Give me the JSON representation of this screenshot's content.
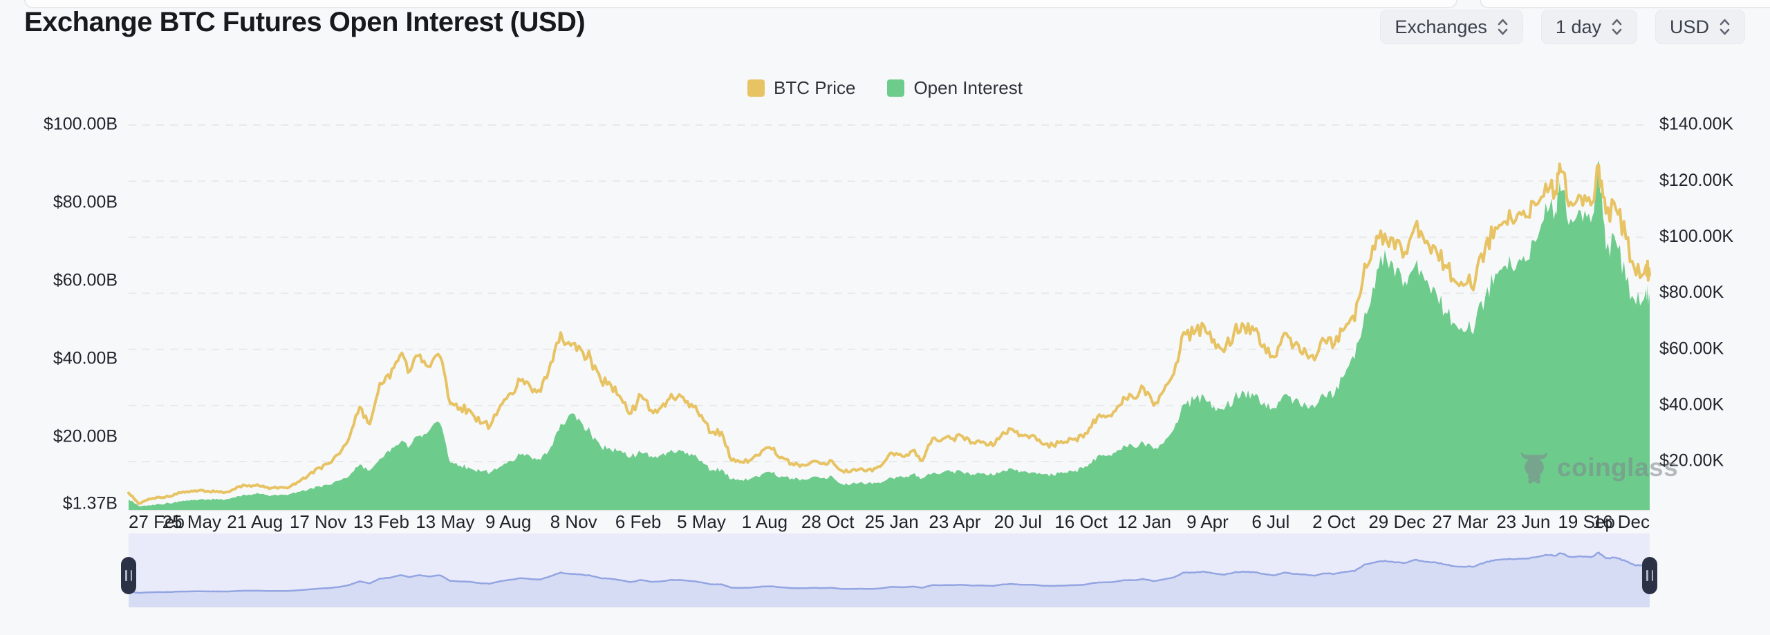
{
  "page": {
    "title": "Exchange BTC Futures Open Interest (USD)"
  },
  "controls": [
    {
      "label": "Exchanges"
    },
    {
      "label": "1 day"
    },
    {
      "label": "USD"
    }
  ],
  "legend": [
    {
      "label": "BTC Price",
      "color": "#e7c364"
    },
    {
      "label": "Open Interest",
      "color": "#6dcb8c"
    }
  ],
  "watermark": {
    "text": "coinglass"
  },
  "chart_data": {
    "type": "area",
    "title": "Exchange BTC Futures Open Interest (USD)",
    "grid": "horizontal-dashed",
    "legend_position": "top-center",
    "series_meta": [
      {
        "name": "BTC Price",
        "chart_type": "line",
        "axis": "right",
        "color": "#e7c364",
        "unit": "USD (thousands)"
      },
      {
        "name": "Open Interest",
        "chart_type": "area",
        "axis": "left",
        "color": "#6dcb8c",
        "unit": "USD (billions)"
      }
    ],
    "left_axis": {
      "labels": [
        "$100.00B",
        "$80.00B",
        "$60.00B",
        "$40.00B",
        "$20.00B",
        "$1.37B"
      ],
      "values": [
        100,
        80,
        60,
        40,
        20,
        1.37
      ],
      "min": 1.37,
      "max": 104
    },
    "right_axis": {
      "labels": [
        "$140.00K",
        "$120.00K",
        "$100.00K",
        "$80.00K",
        "$60.00K",
        "$40.00K",
        "$20.00K"
      ],
      "values": [
        140,
        120,
        100,
        80,
        60,
        40,
        20
      ],
      "min": 2.75,
      "max": 145
    },
    "x_axis": {
      "labels": [
        "27 Feb",
        "25 May",
        "21 Aug",
        "17 Nov",
        "13 Feb",
        "13 May",
        "9 Aug",
        "8 Nov",
        "6 Feb",
        "5 May",
        "1 Aug",
        "28 Oct",
        "25 Jan",
        "23 Apr",
        "20 Jul",
        "16 Oct",
        "12 Jan",
        "9 Apr",
        "6 Jul",
        "2 Oct",
        "29 Dec",
        "27 Mar",
        "23 Jun",
        "19 Sep",
        "16 Dec"
      ],
      "dates": [
        "2020-02-27",
        "2020-05-25",
        "2020-08-21",
        "2020-11-17",
        "2021-02-13",
        "2021-05-13",
        "2021-08-09",
        "2021-11-08",
        "2022-02-06",
        "2022-05-05",
        "2022-08-01",
        "2022-10-28",
        "2023-01-25",
        "2023-04-23",
        "2023-07-20",
        "2023-10-16",
        "2024-01-12",
        "2024-04-09",
        "2024-07-06",
        "2024-10-02",
        "2024-12-29",
        "2025-03-27",
        "2025-06-23",
        "2025-09-19",
        "2025-12-16"
      ]
    },
    "dates": [
      "2020-02-27",
      "2020-03-12",
      "2020-03-26",
      "2020-04-09",
      "2020-04-23",
      "2020-05-07",
      "2020-05-21",
      "2020-06-04",
      "2020-06-18",
      "2020-07-02",
      "2020-07-16",
      "2020-07-30",
      "2020-08-13",
      "2020-08-27",
      "2020-09-10",
      "2020-09-24",
      "2020-10-08",
      "2020-10-22",
      "2020-11-05",
      "2020-11-19",
      "2020-12-03",
      "2020-12-17",
      "2020-12-31",
      "2021-01-14",
      "2021-01-28",
      "2021-02-11",
      "2021-02-25",
      "2021-03-11",
      "2021-03-25",
      "2021-04-08",
      "2021-04-22",
      "2021-05-06",
      "2021-05-20",
      "2021-06-03",
      "2021-06-17",
      "2021-07-01",
      "2021-07-15",
      "2021-07-29",
      "2021-08-12",
      "2021-08-26",
      "2021-09-09",
      "2021-09-23",
      "2021-10-07",
      "2021-10-21",
      "2021-11-04",
      "2021-11-18",
      "2021-12-02",
      "2021-12-16",
      "2021-12-30",
      "2022-01-13",
      "2022-01-27",
      "2022-02-10",
      "2022-02-24",
      "2022-03-10",
      "2022-03-24",
      "2022-04-07",
      "2022-04-21",
      "2022-05-05",
      "2022-05-19",
      "2022-06-02",
      "2022-06-16",
      "2022-06-30",
      "2022-07-14",
      "2022-07-28",
      "2022-08-11",
      "2022-08-25",
      "2022-09-08",
      "2022-09-22",
      "2022-10-06",
      "2022-10-20",
      "2022-11-03",
      "2022-11-17",
      "2022-12-01",
      "2022-12-15",
      "2022-12-29",
      "2023-01-12",
      "2023-01-26",
      "2023-02-09",
      "2023-02-23",
      "2023-03-09",
      "2023-03-23",
      "2023-04-06",
      "2023-04-20",
      "2023-05-04",
      "2023-05-18",
      "2023-06-01",
      "2023-06-15",
      "2023-06-29",
      "2023-07-13",
      "2023-07-27",
      "2023-08-10",
      "2023-08-24",
      "2023-09-07",
      "2023-09-21",
      "2023-10-05",
      "2023-10-19",
      "2023-11-02",
      "2023-11-16",
      "2023-11-30",
      "2023-12-14",
      "2023-12-28",
      "2024-01-11",
      "2024-01-25",
      "2024-02-08",
      "2024-02-22",
      "2024-03-07",
      "2024-03-21",
      "2024-04-04",
      "2024-04-18",
      "2024-05-02",
      "2024-05-16",
      "2024-05-30",
      "2024-06-13",
      "2024-06-27",
      "2024-07-11",
      "2024-07-25",
      "2024-08-08",
      "2024-08-22",
      "2024-09-05",
      "2024-09-19",
      "2024-10-03",
      "2024-10-17",
      "2024-10-31",
      "2024-11-14",
      "2024-11-28",
      "2024-12-12",
      "2024-12-26",
      "2025-01-09",
      "2025-01-23",
      "2025-02-06",
      "2025-02-20",
      "2025-03-06",
      "2025-03-20",
      "2025-04-03",
      "2025-04-17",
      "2025-05-01",
      "2025-05-15",
      "2025-05-29",
      "2025-06-12",
      "2025-06-26",
      "2025-07-10",
      "2025-07-24",
      "2025-08-07",
      "2025-08-14",
      "2025-08-28",
      "2025-09-11",
      "2025-09-25",
      "2025-10-06",
      "2025-10-16",
      "2025-10-30",
      "2025-11-13",
      "2025-11-27",
      "2025-12-11",
      "2025-12-16"
    ],
    "btc_price_k": [
      8.8,
      5.0,
      6.7,
      7.3,
      7.5,
      9.0,
      9.1,
      9.7,
      9.4,
      9.1,
      9.2,
      11.1,
      11.5,
      11.3,
      10.3,
      10.7,
      10.9,
      12.9,
      15.6,
      17.8,
      19.4,
      22.8,
      29.0,
      39.5,
      33.4,
      47.9,
      49.7,
      57.8,
      52.3,
      58.1,
      53.8,
      57.4,
      40.7,
      39.2,
      38.1,
      33.6,
      32.8,
      40.0,
      44.4,
      48.8,
      46.4,
      44.9,
      55.3,
      66.0,
      61.4,
      60.1,
      56.5,
      48.9,
      47.2,
      42.6,
      37.2,
      43.5,
      38.3,
      39.4,
      44.0,
      43.2,
      40.5,
      36.5,
      30.3,
      30.5,
      20.4,
      19.9,
      20.8,
      23.8,
      24.4,
      21.6,
      19.3,
      18.9,
      20.0,
      19.2,
      20.2,
      16.7,
      17.0,
      17.4,
      16.6,
      19.0,
      23.0,
      21.8,
      23.9,
      20.4,
      28.3,
      28.0,
      28.2,
      28.9,
      26.8,
      27.1,
      25.6,
      30.4,
      31.3,
      29.2,
      29.4,
      26.1,
      25.8,
      26.6,
      27.9,
      28.7,
      34.9,
      36.4,
      37.7,
      43.0,
      42.6,
      46.3,
      40.0,
      45.3,
      51.3,
      66.1,
      65.5,
      68.5,
      63.5,
      59.1,
      66.2,
      68.3,
      66.8,
      61.7,
      57.3,
      65.8,
      61.7,
      60.4,
      56.2,
      63.2,
      61.8,
      67.4,
      70.2,
      90.5,
      95.7,
      101.2,
      95.8,
      94.7,
      104.0,
      98.0,
      96.5,
      90.0,
      84.2,
      83.1,
      84.5,
      96.5,
      103.5,
      105.6,
      105.9,
      107.2,
      111.5,
      119.0,
      116.5,
      123.5,
      112.5,
      114.6,
      111.5,
      125.8,
      108.5,
      110.0,
      99.5,
      86.5,
      90.0,
      86.4
    ],
    "open_interest_b": [
      4.0,
      2.4,
      2.6,
      2.9,
      3.1,
      3.6,
      3.7,
      4.0,
      4.1,
      4.0,
      4.2,
      4.9,
      5.3,
      5.5,
      4.9,
      5.2,
      5.4,
      6.0,
      6.8,
      7.4,
      7.8,
      8.9,
      10.2,
      13.0,
      11.5,
      14.5,
      16.2,
      18.5,
      17.8,
      20.5,
      22.0,
      23.5,
      13.5,
      12.8,
      12.0,
      11.2,
      11.0,
      12.5,
      14.0,
      15.5,
      15.0,
      14.2,
      17.5,
      23.5,
      26.0,
      24.0,
      21.0,
      17.5,
      16.8,
      16.5,
      15.0,
      16.0,
      15.2,
      15.5,
      16.8,
      16.5,
      15.8,
      14.0,
      11.5,
      11.8,
      9.2,
      9.0,
      9.5,
      10.5,
      10.8,
      10.0,
      9.5,
      9.3,
      9.8,
      9.5,
      10.0,
      8.0,
      8.2,
      8.4,
      8.0,
      8.5,
      9.5,
      9.8,
      10.5,
      9.5,
      10.8,
      11.0,
      11.2,
      11.0,
      10.5,
      10.8,
      10.2,
      11.5,
      11.8,
      11.2,
      11.0,
      10.5,
      10.3,
      10.8,
      11.2,
      12.0,
      14.5,
      15.5,
      16.0,
      18.0,
      17.5,
      18.5,
      17.0,
      18.5,
      22.0,
      28.5,
      29.5,
      30.5,
      28.0,
      27.0,
      30.0,
      31.5,
      30.5,
      29.0,
      27.5,
      31.0,
      29.5,
      29.0,
      27.5,
      30.5,
      31.0,
      36.0,
      40.0,
      52.0,
      58.0,
      68.0,
      61.0,
      60.0,
      64.0,
      60.0,
      58.0,
      52.0,
      49.0,
      47.0,
      49.0,
      56.0,
      62.0,
      64.0,
      63.0,
      65.0,
      70.0,
      80.0,
      78.0,
      83.0,
      76.0,
      78.0,
      75.0,
      91.0,
      68.0,
      70.0,
      60.0,
      54.0,
      58.0,
      55.0
    ],
    "navigator": {
      "displays": "BTC Price",
      "line_color": "#93a5e2",
      "fill_color": "#d7dcf5",
      "background": "#e9ebfa"
    }
  }
}
